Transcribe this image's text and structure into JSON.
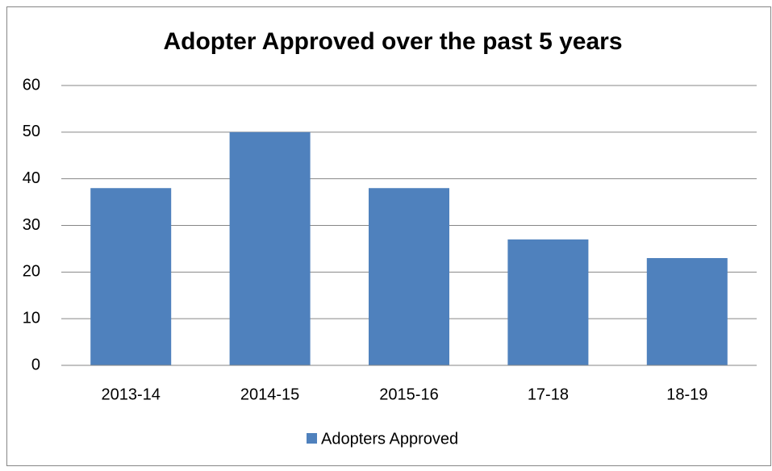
{
  "chart_data": {
    "type": "bar",
    "title": "Adopter Approved over the past 5 years",
    "categories": [
      "2013-14",
      "2014-15",
      "2015-16",
      "17-18",
      "18-19"
    ],
    "series": [
      {
        "name": "Adopters Approved",
        "color": "#4f81bd",
        "values": [
          38,
          50,
          38,
          27,
          23
        ]
      }
    ],
    "ylim": [
      0,
      60
    ],
    "yticks": [
      0,
      10,
      20,
      30,
      40,
      50,
      60
    ],
    "grid": true,
    "legend": "bottom"
  }
}
